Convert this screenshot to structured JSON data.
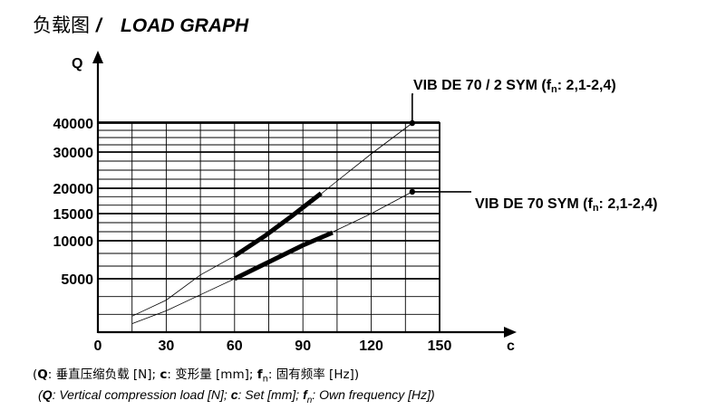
{
  "title": {
    "zh": "负载图",
    "sep": " / ",
    "en": "LOAD GRAPH"
  },
  "chart_data": {
    "type": "line",
    "xlabel": "c",
    "ylabel": "Q",
    "x_ticks": [
      "0",
      "30",
      "60",
      "90",
      "120",
      "150"
    ],
    "y_ticks": [
      "5000",
      "10000",
      "15000",
      "20000",
      "30000",
      "40000"
    ],
    "xlim": [
      0,
      150
    ],
    "ylim": [
      0,
      45000
    ],
    "grid": true,
    "series": [
      {
        "name": "VIB DE  70 / 2 SYM (f",
        "name_sub": "n",
        "name_tail": ": 2,1-2,4)",
        "thin_points": [
          [
            15,
            1500
          ],
          [
            30,
            3000
          ],
          [
            45,
            5500
          ],
          [
            60,
            8000
          ],
          [
            75,
            11200
          ],
          [
            90,
            16000
          ],
          [
            105,
            22000
          ],
          [
            120,
            29500
          ],
          [
            138,
            40000
          ]
        ],
        "thick_points": [
          [
            60,
            8000
          ],
          [
            73,
            10800
          ],
          [
            85,
            14500
          ],
          [
            98,
            19000
          ]
        ]
      },
      {
        "name": "VIB DE  70 SYM (f",
        "name_sub": "n",
        "name_tail": ": 2,1-2,4)",
        "thin_points": [
          [
            15,
            800
          ],
          [
            30,
            2000
          ],
          [
            45,
            3500
          ],
          [
            60,
            5000
          ],
          [
            75,
            7000
          ],
          [
            90,
            9300
          ],
          [
            105,
            12000
          ],
          [
            120,
            15000
          ],
          [
            138,
            19300
          ]
        ],
        "thick_points": [
          [
            60,
            5000
          ],
          [
            75,
            7200
          ],
          [
            90,
            9400
          ],
          [
            103,
            11500
          ]
        ]
      }
    ]
  },
  "caption_zh": {
    "open": "(",
    "q_key": "Q",
    "q_text": ": 垂直压缩负载 [N]; ",
    "c_key": "c",
    "c_text": ": 变形量 [mm]; ",
    "f_key": "f",
    "f_sub": "n",
    "f_text": ": 固有频率 [Hz])"
  },
  "caption_en": {
    "open": "(",
    "q_key": "Q",
    "q_text": ": Vertical compression load [N]; ",
    "c_key": "c",
    "c_text": ": Set [mm]; ",
    "f_key": "f",
    "f_sub": "n",
    "f_text": ": Own frequency [Hz])"
  }
}
